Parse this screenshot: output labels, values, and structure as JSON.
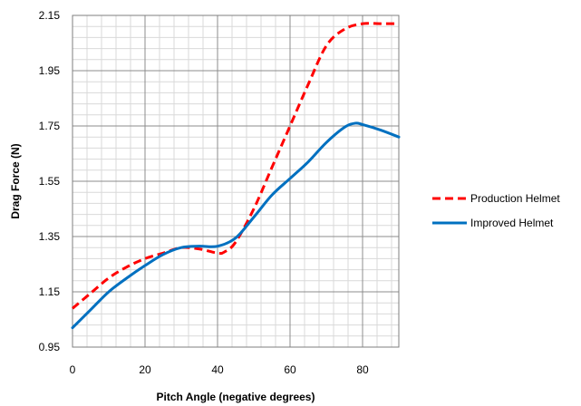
{
  "chart_data": {
    "type": "line",
    "title": "",
    "xlabel": "Pitch Angle (negative degrees)",
    "ylabel": "Drag Force (N)",
    "xlim": [
      0,
      90
    ],
    "ylim": [
      0.95,
      2.15
    ],
    "x_major_ticks": [
      0,
      20,
      40,
      60,
      80
    ],
    "y_major_ticks": [
      0.95,
      1.15,
      1.35,
      1.55,
      1.75,
      1.95,
      2.15
    ],
    "x_tick_labels": [
      "0",
      "20",
      "40",
      "60",
      "80"
    ],
    "y_tick_labels": [
      "0.95",
      "1.15",
      "1.35",
      "1.55",
      "1.75",
      "1.95",
      "2.15"
    ],
    "x_minor_step": 4,
    "y_minor_step": 0.04,
    "grid": true,
    "legend_position": "right",
    "series": [
      {
        "name": "Production Helmet",
        "color": "#ff0000",
        "dash": "dashed",
        "x": [
          0,
          5,
          10,
          15,
          20,
          25,
          30,
          35,
          40,
          42,
          45,
          50,
          55,
          60,
          65,
          70,
          75,
          80,
          85,
          90
        ],
        "y": [
          1.09,
          1.145,
          1.2,
          1.24,
          1.27,
          1.29,
          1.31,
          1.305,
          1.29,
          1.295,
          1.33,
          1.45,
          1.6,
          1.75,
          1.9,
          2.04,
          2.1,
          2.12,
          2.12,
          2.12
        ]
      },
      {
        "name": "Improved Helmet",
        "color": "#0070c0",
        "dash": "solid",
        "x": [
          0,
          5,
          10,
          15,
          20,
          25,
          30,
          35,
          40,
          45,
          50,
          55,
          60,
          65,
          70,
          75,
          78,
          80,
          85,
          90
        ],
        "y": [
          1.02,
          1.085,
          1.15,
          1.2,
          1.245,
          1.285,
          1.31,
          1.315,
          1.315,
          1.345,
          1.42,
          1.5,
          1.56,
          1.62,
          1.69,
          1.745,
          1.76,
          1.755,
          1.735,
          1.71
        ]
      }
    ]
  }
}
